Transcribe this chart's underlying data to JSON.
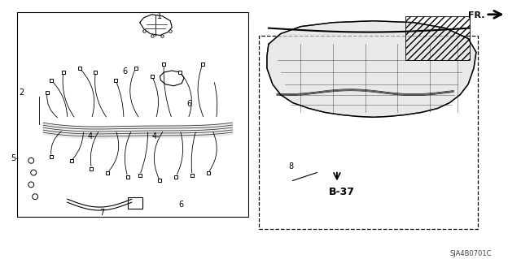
{
  "bg_color": "#ffffff",
  "line_color": "#000000",
  "fig_width": 6.4,
  "fig_height": 3.19,
  "dpi": 100,
  "ref_label": "B-37",
  "direction_label": "FR.",
  "catalog_code": "SJA4B0701C"
}
